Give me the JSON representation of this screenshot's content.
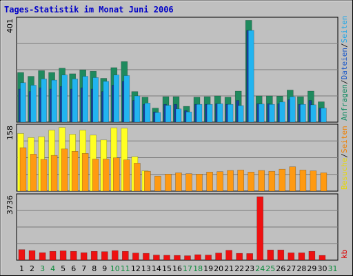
{
  "chart_data": {
    "type": "bar",
    "title": "Tages-Statistik im Monat Juni 2006",
    "days": [
      "1",
      "2",
      "3",
      "4",
      "5",
      "6",
      "7",
      "8",
      "9",
      "10",
      "11",
      "12",
      "13",
      "14",
      "15",
      "16",
      "17",
      "18",
      "19",
      "20",
      "21",
      "22",
      "23",
      "24",
      "25",
      "26",
      "27",
      "28",
      "29",
      "30",
      "31"
    ],
    "weekend_days": [
      "3",
      "4",
      "10",
      "11",
      "17",
      "18",
      "24",
      "25",
      "31"
    ],
    "panels": [
      {
        "ymax_label": "401",
        "ymax": 401,
        "side_label_parts": [
          "Anfragen",
          "/",
          "Dateien",
          "/",
          "Seiten"
        ],
        "side_label_colors": [
          "#0a8a5f",
          "#222222",
          "#1b58c8",
          "#222222",
          "#22a8e8"
        ],
        "series": [
          {
            "name": "Anfragen",
            "color": "#1f8a5e",
            "values": [
              195,
              180,
              202,
              195,
              212,
              190,
              205,
              200,
              172,
              214,
              238,
              120,
              98,
              55,
              100,
              100,
              62,
              98,
              100,
              103,
              98,
              122,
              400,
              103,
              103,
              102,
              126,
              100,
              122,
              80,
              0
            ]
          },
          {
            "name": "Dateien",
            "color": "#1a3fa0",
            "values": [
              130,
              120,
              135,
              130,
              140,
              130,
              135,
              130,
              120,
              145,
              160,
              85,
              70,
              40,
              70,
              70,
              45,
              70,
              70,
              72,
              70,
              85,
              360,
              72,
              72,
              72,
              88,
              70,
              85,
              55,
              0
            ]
          },
          {
            "name": "Seiten",
            "color": "#22b4f0",
            "values": [
              155,
              145,
              170,
              165,
              185,
              170,
              180,
              175,
              160,
              185,
              183,
              103,
              75,
              38,
              66,
              52,
              40,
              70,
              70,
              72,
              70,
              65,
              360,
              71,
              70,
              79,
              100,
              70,
              68,
              55,
              0
            ]
          }
        ]
      },
      {
        "ymax_label": "158",
        "ymax": 158,
        "side_label_parts": [
          "Besuche",
          "/",
          "Seiten"
        ],
        "side_label_colors": [
          "#e8d800",
          "#222222",
          "#f08000"
        ],
        "series": [
          {
            "name": "Besuche",
            "color": "#ffff22",
            "values": [
              142,
              132,
              134,
              150,
              157,
              140,
              150,
              138,
              126,
              156,
              155,
              85,
              50,
              0,
              0,
              0,
              0,
              0,
              0,
              0,
              0,
              0,
              0,
              0,
              0,
              0,
              0,
              0,
              0,
              0,
              0
            ]
          },
          {
            "name": "Seiten",
            "color": "#ff9a11",
            "values": [
              107,
              91,
              78,
              88,
              104,
              98,
              93,
              79,
              79,
              82,
              77,
              69,
              49,
              37,
              42,
              45,
              43,
              42,
              47,
              48,
              51,
              52,
              47,
              51,
              49,
              54,
              60,
              52,
              50,
              45,
              0
            ]
          }
        ]
      },
      {
        "ymax_label": "3736",
        "ymax": 3736,
        "side_label_parts": [
          "kb"
        ],
        "side_label_colors": [
          "#dd0000"
        ],
        "series": [
          {
            "name": "kb",
            "color": "#ee1111",
            "values": [
              620,
              560,
              440,
              520,
              550,
              520,
              440,
              520,
              500,
              560,
              520,
              420,
              400,
              300,
              290,
              280,
              260,
              320,
              300,
              420,
              580,
              400,
              390,
              3736,
              600,
              600,
              430,
              430,
              520,
              280,
              0
            ]
          }
        ]
      }
    ]
  }
}
